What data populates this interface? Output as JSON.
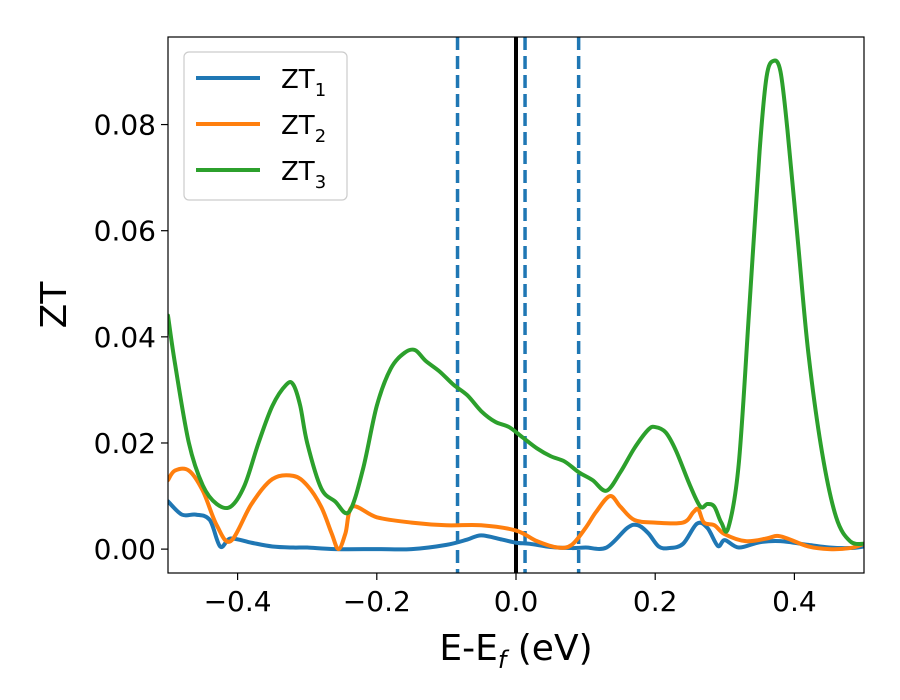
{
  "chart_data": {
    "type": "line",
    "xlabel": "E-E",
    "xlabel_sub": "f",
    "xlabel_unit": " (eV)",
    "ylabel": "ZT",
    "xlim": [
      -0.5,
      0.5
    ],
    "ylim": [
      -0.0045,
      0.0965
    ],
    "x_ticks": [
      -0.4,
      -0.2,
      0.0,
      0.2,
      0.4
    ],
    "x_tick_labels": [
      "−0.4",
      "−0.2",
      "0.0",
      "0.2",
      "0.4"
    ],
    "y_ticks": [
      0.0,
      0.02,
      0.04,
      0.06,
      0.08
    ],
    "y_tick_labels": [
      "0.00",
      "0.02",
      "0.04",
      "0.06",
      "0.08"
    ],
    "grid": false,
    "legend_position": "top-left",
    "vlines": [
      {
        "x": 0.0,
        "style": "solid",
        "color": "#000000"
      },
      {
        "x": -0.084,
        "style": "dashed",
        "color": "#1f77b4"
      },
      {
        "x": 0.013,
        "style": "dashed",
        "color": "#1f77b4"
      },
      {
        "x": 0.09,
        "style": "dashed",
        "color": "#1f77b4"
      }
    ],
    "series": [
      {
        "name": "ZT",
        "name_sub": "1",
        "color": "#1f77b4",
        "x": [
          -0.5,
          -0.48,
          -0.46,
          -0.44,
          -0.425,
          -0.41,
          -0.38,
          -0.35,
          -0.32,
          -0.3,
          -0.26,
          -0.2,
          -0.15,
          -0.1,
          -0.07,
          -0.05,
          -0.02,
          0.0,
          0.02,
          0.05,
          0.08,
          0.1,
          0.13,
          0.16,
          0.175,
          0.19,
          0.205,
          0.22,
          0.24,
          0.26,
          0.275,
          0.29,
          0.3,
          0.32,
          0.35,
          0.38,
          0.42,
          0.45,
          0.48,
          0.5
        ],
        "y": [
          0.009,
          0.0065,
          0.0065,
          0.0055,
          0.0005,
          0.002,
          0.0012,
          0.0005,
          0.0003,
          0.0003,
          0.0,
          0.0,
          0.0,
          0.0008,
          0.0018,
          0.0026,
          0.0018,
          0.0012,
          0.001,
          0.0004,
          0.0002,
          0.0003,
          0.0003,
          0.004,
          0.0045,
          0.003,
          0.0005,
          0.0002,
          0.001,
          0.0048,
          0.004,
          0.0006,
          0.0017,
          0.0003,
          0.0013,
          0.0015,
          0.0008,
          0.0003,
          0.0002,
          0.0005
        ]
      },
      {
        "name": "ZT",
        "name_sub": "2",
        "color": "#ff7f0e",
        "x": [
          -0.5,
          -0.49,
          -0.47,
          -0.45,
          -0.43,
          -0.41,
          -0.38,
          -0.35,
          -0.32,
          -0.3,
          -0.28,
          -0.265,
          -0.255,
          -0.245,
          -0.235,
          -0.2,
          -0.15,
          -0.1,
          -0.05,
          0.0,
          0.03,
          0.06,
          0.08,
          0.1,
          0.115,
          0.135,
          0.15,
          0.17,
          0.2,
          0.24,
          0.255,
          0.262,
          0.27,
          0.285,
          0.3,
          0.33,
          0.36,
          0.375,
          0.39,
          0.42,
          0.45,
          0.48,
          0.5
        ],
        "y": [
          0.013,
          0.0148,
          0.0148,
          0.011,
          0.0045,
          0.0015,
          0.0085,
          0.0132,
          0.0138,
          0.012,
          0.008,
          0.003,
          0.0,
          0.003,
          0.008,
          0.006,
          0.005,
          0.0045,
          0.0045,
          0.0035,
          0.0015,
          0.0003,
          0.0008,
          0.004,
          0.007,
          0.01,
          0.008,
          0.0055,
          0.005,
          0.005,
          0.007,
          0.0075,
          0.005,
          0.0045,
          0.0028,
          0.0015,
          0.002,
          0.0025,
          0.002,
          0.0005,
          0.0,
          0.0002,
          0.001
        ]
      },
      {
        "name": "ZT",
        "name_sub": "3",
        "color": "#2ca02c",
        "x": [
          -0.5,
          -0.49,
          -0.47,
          -0.45,
          -0.43,
          -0.41,
          -0.39,
          -0.37,
          -0.35,
          -0.33,
          -0.32,
          -0.31,
          -0.3,
          -0.28,
          -0.26,
          -0.24,
          -0.22,
          -0.2,
          -0.18,
          -0.16,
          -0.145,
          -0.13,
          -0.11,
          -0.09,
          -0.07,
          -0.05,
          -0.03,
          -0.01,
          0.01,
          0.03,
          0.05,
          0.07,
          0.09,
          0.11,
          0.13,
          0.15,
          0.17,
          0.19,
          0.2,
          0.215,
          0.23,
          0.25,
          0.265,
          0.275,
          0.285,
          0.295,
          0.305,
          0.32,
          0.335,
          0.35,
          0.36,
          0.37,
          0.38,
          0.39,
          0.405,
          0.42,
          0.44,
          0.46,
          0.48,
          0.5
        ],
        "y": [
          0.044,
          0.035,
          0.02,
          0.012,
          0.0085,
          0.008,
          0.012,
          0.02,
          0.027,
          0.031,
          0.031,
          0.027,
          0.02,
          0.0115,
          0.009,
          0.007,
          0.015,
          0.027,
          0.034,
          0.037,
          0.0375,
          0.0355,
          0.0335,
          0.031,
          0.029,
          0.026,
          0.024,
          0.023,
          0.021,
          0.019,
          0.0175,
          0.0165,
          0.0145,
          0.013,
          0.011,
          0.0145,
          0.019,
          0.0225,
          0.023,
          0.022,
          0.0185,
          0.012,
          0.008,
          0.0085,
          0.008,
          0.005,
          0.004,
          0.016,
          0.045,
          0.075,
          0.089,
          0.092,
          0.09,
          0.079,
          0.058,
          0.037,
          0.018,
          0.006,
          0.0015,
          0.001
        ]
      }
    ]
  }
}
